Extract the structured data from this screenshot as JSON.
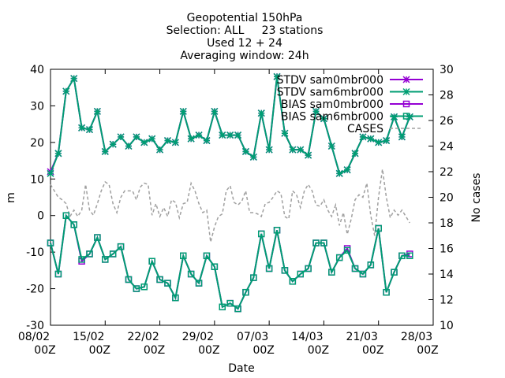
{
  "chart_data": {
    "type": "line",
    "title_lines": [
      "Geopotential 150hPa",
      "Selection: ALL     23 stations",
      "Used 12 + 24",
      "Averaging window: 24h"
    ],
    "xlabel": "Date",
    "ylabel": "m",
    "y2label": "No cases",
    "ylim": [
      -30,
      40
    ],
    "y2lim": [
      10,
      30
    ],
    "yticks": [
      "-30",
      "-20",
      "-10",
      "0",
      "10",
      "20",
      "30",
      "40"
    ],
    "y2ticks": [
      "10",
      "12",
      "14",
      "16",
      "18",
      "20",
      "22",
      "24",
      "26",
      "28",
      "30"
    ],
    "xticks": [
      {
        "day": 0,
        "top": "08/02",
        "bottom": "00Z"
      },
      {
        "day": 7,
        "top": "15/02",
        "bottom": "00Z"
      },
      {
        "day": 14,
        "top": "22/02",
        "bottom": "00Z"
      },
      {
        "day": 21,
        "top": "29/02",
        "bottom": "00Z"
      },
      {
        "day": 28,
        "top": "07/03",
        "bottom": "00Z"
      },
      {
        "day": 35,
        "top": "14/03",
        "bottom": "00Z"
      },
      {
        "day": 42,
        "top": "21/03",
        "bottom": "00Z"
      },
      {
        "day": 49,
        "top": "28/03",
        "bottom": "00Z"
      }
    ],
    "x_days": [
      0,
      1,
      2,
      3,
      4,
      5,
      6,
      7,
      8,
      9,
      10,
      11,
      12,
      13,
      14,
      15,
      16,
      17,
      18,
      19,
      20,
      21,
      22,
      23,
      24,
      25,
      26,
      27,
      28,
      29,
      30,
      31,
      32,
      33,
      34,
      35,
      36,
      37,
      38,
      39,
      40,
      41,
      42,
      43,
      44,
      45,
      46
    ],
    "grid": false,
    "legend_position": "top-right",
    "series": [
      {
        "name": "STDV sam0mbr000",
        "axis": "left",
        "color": "#9400d3",
        "marker": "star",
        "x_days": [
          0,
          1,
          2,
          3,
          4,
          5,
          6,
          7,
          8,
          9,
          10,
          11,
          12,
          13,
          14,
          15,
          16,
          17,
          18,
          19,
          20,
          21,
          22,
          23,
          24,
          25,
          26,
          27,
          28,
          29,
          30,
          31,
          32,
          33,
          34,
          35,
          36,
          37,
          38,
          39,
          40,
          41,
          42,
          43,
          44,
          45,
          46
        ],
        "values": [
          12,
          17,
          34,
          37.5,
          24,
          23.5,
          28.5,
          17.5,
          19.5,
          21.5,
          19,
          21.5,
          20,
          21,
          18,
          20.5,
          20,
          28.5,
          21,
          22,
          20.5,
          28.5,
          22,
          22,
          22,
          17.5,
          16,
          28,
          18,
          38,
          22.5,
          18,
          18,
          16.5,
          28.5,
          26.5,
          19,
          11.5,
          12.5,
          17,
          21.5,
          21,
          20,
          20.5,
          27,
          21.5,
          27
        ]
      },
      {
        "name": "STDV sam6mbr000",
        "axis": "left",
        "color": "#009e73",
        "marker": "star",
        "x_days": [
          0,
          1,
          2,
          3,
          4,
          5,
          6,
          7,
          8,
          9,
          10,
          11,
          12,
          13,
          14,
          15,
          16,
          17,
          18,
          19,
          20,
          21,
          22,
          23,
          24,
          25,
          26,
          27,
          28,
          29,
          30,
          31,
          32,
          33,
          34,
          35,
          36,
          37,
          38,
          39,
          40,
          41,
          42,
          43,
          44,
          45,
          46
        ],
        "values": [
          11.5,
          17,
          34,
          37.5,
          24,
          23.5,
          28.5,
          17.5,
          19.5,
          21.5,
          19,
          21.5,
          20,
          21,
          18,
          20.5,
          20,
          28.5,
          21,
          22,
          20.5,
          28.5,
          22,
          22,
          22,
          17.5,
          16,
          28,
          18,
          38,
          22.5,
          18,
          18,
          16.5,
          28.5,
          26.5,
          19,
          11.5,
          12.5,
          17,
          21.5,
          21,
          20,
          20.5,
          27,
          21.5,
          27
        ]
      },
      {
        "name": "BIAS sam0mbr000",
        "axis": "left",
        "color": "#9400d3",
        "marker": "square",
        "x_days": [
          0,
          1,
          2,
          3,
          4,
          5,
          6,
          7,
          8,
          9,
          10,
          11,
          12,
          13,
          14,
          15,
          16,
          17,
          18,
          19,
          20,
          21,
          22,
          23,
          24,
          25,
          26,
          27,
          28,
          29,
          30,
          31,
          32,
          33,
          34,
          35,
          36,
          37,
          38,
          39,
          40,
          41,
          42,
          43,
          44,
          45,
          46
        ],
        "values": [
          -7.5,
          -16,
          0,
          -2.5,
          -12.5,
          -10.5,
          -6,
          -12,
          -10.5,
          -8.5,
          -17.5,
          -20,
          -19.5,
          -12.5,
          -17.5,
          -18.5,
          -22.5,
          -11,
          -16,
          -18.5,
          -11,
          -14,
          -25,
          -24,
          -25.5,
          -21,
          -17,
          -5,
          -14.5,
          -4,
          -15,
          -18,
          -16,
          -14.5,
          -7.5,
          -7.5,
          -15.5,
          -11.5,
          -9,
          -14.5,
          -16,
          -13.5,
          -3.5,
          -21,
          -15.5,
          -11,
          -10.5
        ]
      },
      {
        "name": "BIAS sam6mbr000",
        "axis": "left",
        "color": "#009e73",
        "marker": "square",
        "x_days": [
          0,
          1,
          2,
          3,
          4,
          5,
          6,
          7,
          8,
          9,
          10,
          11,
          12,
          13,
          14,
          15,
          16,
          17,
          18,
          19,
          20,
          21,
          22,
          23,
          24,
          25,
          26,
          27,
          28,
          29,
          30,
          31,
          32,
          33,
          34,
          35,
          36,
          37,
          38,
          39,
          40,
          41,
          42,
          43,
          44,
          45,
          46
        ],
        "values": [
          -7.5,
          -16,
          0,
          -2.5,
          -12,
          -10.5,
          -6,
          -12,
          -10.5,
          -8.5,
          -17.5,
          -20,
          -19.5,
          -12.5,
          -17.5,
          -18.5,
          -22.5,
          -11,
          -16,
          -18.5,
          -11,
          -14,
          -25,
          -24,
          -25.5,
          -21,
          -17,
          -5,
          -14.5,
          -4,
          -15,
          -18,
          -16,
          -14.5,
          -7.5,
          -7.5,
          -15.5,
          -11.5,
          -9.5,
          -14.5,
          -16,
          -13.5,
          -3.5,
          -21,
          -15.5,
          -11,
          -11
        ]
      },
      {
        "name": "CASES",
        "axis": "right",
        "color": "#a0a0a0",
        "marker": "none",
        "dashed": true,
        "x_days": [
          0,
          0.5,
          1,
          1.5,
          2,
          2.5,
          3,
          3.5,
          4,
          4.5,
          5,
          5.5,
          6,
          6.5,
          7,
          7.5,
          8,
          8.5,
          9,
          9.5,
          10,
          10.5,
          11,
          11.5,
          12,
          12.5,
          13,
          13.5,
          14,
          14.5,
          15,
          15.5,
          16,
          16.5,
          17,
          17.5,
          18,
          18.5,
          19,
          19.5,
          20,
          20.5,
          21,
          21.5,
          22,
          22.5,
          23,
          23.5,
          24,
          24.5,
          25,
          25.5,
          26,
          26.5,
          27,
          27.5,
          28,
          28.5,
          29,
          29.5,
          30,
          30.5,
          31,
          31.5,
          32,
          32.5,
          33,
          33.5,
          34,
          34.5,
          35,
          35.5,
          36,
          36.5,
          37,
          37.5,
          38,
          38.5,
          39,
          39.5,
          40,
          40.5,
          41,
          41.5,
          42,
          42.5,
          43,
          43.5,
          44,
          44.5,
          45,
          45.5,
          46
        ],
        "values": [
          21,
          20.5,
          20,
          19.8,
          19.5,
          18.5,
          19,
          18.5,
          19,
          21,
          19,
          18.6,
          19.5,
          20.5,
          21.2,
          21,
          19.5,
          18.8,
          20,
          20.5,
          20.5,
          20.5,
          19.8,
          20.8,
          21.1,
          21,
          18.6,
          19.5,
          18.5,
          19.2,
          18.5,
          19.8,
          19.6,
          18.4,
          19.5,
          19.6,
          21.1,
          20.5,
          19.5,
          18.8,
          19,
          16.5,
          17.7,
          18.5,
          18.7,
          20.5,
          20.9,
          19.6,
          19.4,
          19.7,
          20.5,
          18.8,
          18.8,
          18.7,
          18.5,
          19.5,
          19.6,
          20,
          20.5,
          20.3,
          18.5,
          18.3,
          20.5,
          20.2,
          19.2,
          20.5,
          21,
          20.5,
          19.4,
          19.3,
          19.8,
          19,
          18.5,
          19.4,
          17.8,
          18.8,
          17.1,
          18.3,
          19.8,
          20.2,
          20,
          21.1,
          18.6,
          17,
          20,
          22.2,
          20,
          18.4,
          19,
          18.6,
          19,
          18.5,
          18
        ]
      }
    ]
  }
}
